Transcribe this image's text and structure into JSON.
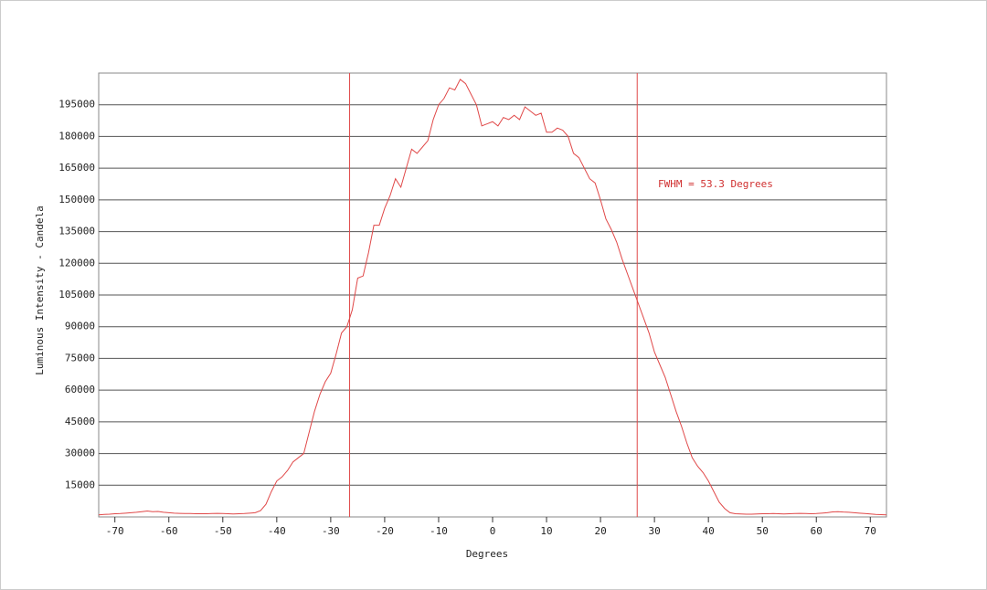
{
  "chart_data": {
    "type": "line",
    "xlabel": "Degrees",
    "ylabel": "Luminous Intensity - Candela",
    "annotation": "FWHM = 53.3 Degrees",
    "x": [
      -73,
      -72,
      -71,
      -70,
      -69,
      -68,
      -67,
      -66,
      -65,
      -64,
      -63,
      -62,
      -61,
      -60,
      -59,
      -58,
      -57,
      -56,
      -55,
      -54,
      -53,
      -52,
      -51,
      -50,
      -49,
      -48,
      -47,
      -46,
      -45,
      -44,
      -43,
      -42,
      -41,
      -40,
      -39,
      -38,
      -37,
      -36,
      -35,
      -34,
      -33,
      -32,
      -31,
      -30,
      -29,
      -28,
      -27,
      -26,
      -25,
      -24,
      -23,
      -22,
      -21,
      -20,
      -19,
      -18,
      -17,
      -16,
      -15,
      -14,
      -13,
      -12,
      -11,
      -10,
      -9,
      -8,
      -7,
      -6,
      -5,
      -4,
      -3,
      -2,
      -1,
      0,
      1,
      2,
      3,
      4,
      5,
      6,
      7,
      8,
      9,
      10,
      11,
      12,
      13,
      14,
      15,
      16,
      17,
      18,
      19,
      20,
      21,
      22,
      23,
      24,
      25,
      26,
      27,
      28,
      29,
      30,
      31,
      32,
      33,
      34,
      35,
      36,
      37,
      38,
      39,
      40,
      41,
      42,
      43,
      44,
      45,
      46,
      47,
      48,
      49,
      50,
      51,
      52,
      53,
      54,
      55,
      56,
      57,
      58,
      59,
      60,
      61,
      62,
      63,
      64,
      65,
      66,
      67,
      68,
      69,
      70,
      71,
      72,
      73
    ],
    "series": [
      {
        "name": "Intensity",
        "color": "#e04848",
        "values": [
          1000,
          1200,
          1300,
          1500,
          1600,
          1800,
          2000,
          2200,
          2500,
          2800,
          2500,
          2600,
          2200,
          2000,
          1800,
          1700,
          1600,
          1600,
          1500,
          1500,
          1500,
          1600,
          1700,
          1600,
          1500,
          1400,
          1500,
          1600,
          1800,
          2000,
          3000,
          6000,
          12000,
          17000,
          19000,
          22000,
          26000,
          28000,
          30000,
          40000,
          50000,
          58000,
          64000,
          68000,
          77000,
          87000,
          90000,
          98000,
          113000,
          114000,
          125000,
          138000,
          138000,
          146000,
          152000,
          160000,
          156000,
          165000,
          174000,
          172000,
          175000,
          178000,
          188000,
          195000,
          198000,
          203000,
          202000,
          207000,
          205000,
          200000,
          195000,
          185000,
          186000,
          187000,
          185000,
          189000,
          188000,
          190000,
          188000,
          194000,
          192000,
          190000,
          191000,
          182000,
          182000,
          184000,
          183000,
          180000,
          172000,
          170000,
          165000,
          160000,
          158000,
          150000,
          141000,
          136000,
          130000,
          122000,
          115000,
          108000,
          101000,
          94000,
          87000,
          78000,
          72000,
          66000,
          58000,
          50000,
          43000,
          35000,
          28000,
          24000,
          21000,
          17000,
          12000,
          7000,
          4000,
          2000,
          1500,
          1400,
          1300,
          1300,
          1400,
          1500,
          1500,
          1600,
          1500,
          1400,
          1500,
          1600,
          1700,
          1600,
          1500,
          1600,
          1800,
          2000,
          2400,
          2500,
          2300,
          2200,
          2000,
          1800,
          1600,
          1400,
          1200,
          1100,
          1000
        ]
      }
    ],
    "vlines": [
      -26.5,
      26.8
    ],
    "vline_color": "#e04848",
    "xlim": [
      -73,
      73
    ],
    "ylim": [
      0,
      210000
    ],
    "xticks": [
      -70,
      -60,
      -50,
      -40,
      -30,
      -20,
      -10,
      0,
      10,
      20,
      30,
      40,
      50,
      60,
      70
    ],
    "yticks": [
      15000,
      30000,
      45000,
      60000,
      75000,
      90000,
      105000,
      120000,
      135000,
      150000,
      165000,
      180000,
      195000
    ],
    "grid": true
  }
}
